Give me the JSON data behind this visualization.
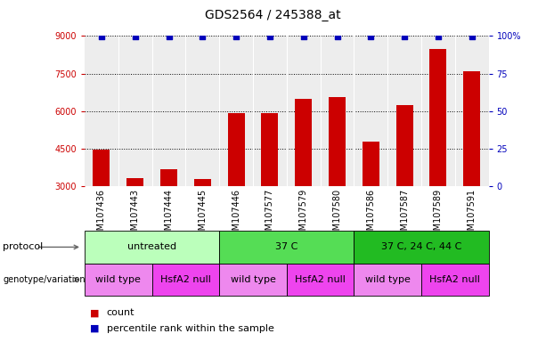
{
  "title": "GDS2564 / 245388_at",
  "samples": [
    "GSM107436",
    "GSM107443",
    "GSM107444",
    "GSM107445",
    "GSM107446",
    "GSM107577",
    "GSM107579",
    "GSM107580",
    "GSM107586",
    "GSM107587",
    "GSM107589",
    "GSM107591"
  ],
  "counts": [
    4480,
    3320,
    3680,
    3280,
    5920,
    5920,
    6480,
    6560,
    4800,
    6240,
    8480,
    7600
  ],
  "ylim_left": [
    3000,
    9000
  ],
  "ylim_right": [
    0,
    100
  ],
  "yticks_left": [
    3000,
    4500,
    6000,
    7500,
    9000
  ],
  "yticks_right": [
    0,
    25,
    50,
    75,
    100
  ],
  "bar_color": "#cc0000",
  "dot_color": "#0000bb",
  "grid_color": "#000000",
  "bg_color": "#ffffff",
  "left_label_color": "#cc0000",
  "right_label_color": "#0000bb",
  "protocol_groups": [
    {
      "label": "untreated",
      "start": 0,
      "end": 3,
      "color": "#bbffbb"
    },
    {
      "label": "37 C",
      "start": 4,
      "end": 7,
      "color": "#55dd55"
    },
    {
      "label": "37 C, 24 C, 44 C",
      "start": 8,
      "end": 11,
      "color": "#22bb22"
    }
  ],
  "genotype_groups": [
    {
      "label": "wild type",
      "start": 0,
      "end": 1,
      "color": "#ee88ee"
    },
    {
      "label": "HsfA2 null",
      "start": 2,
      "end": 3,
      "color": "#ee44ee"
    },
    {
      "label": "wild type",
      "start": 4,
      "end": 5,
      "color": "#ee88ee"
    },
    {
      "label": "HsfA2 null",
      "start": 6,
      "end": 7,
      "color": "#ee44ee"
    },
    {
      "label": "wild type",
      "start": 8,
      "end": 9,
      "color": "#ee88ee"
    },
    {
      "label": "HsfA2 null",
      "start": 10,
      "end": 11,
      "color": "#ee44ee"
    }
  ],
  "protocol_label": "protocol",
  "genotype_label": "genotype/variation",
  "legend_count_label": "count",
  "legend_percentile_label": "percentile rank within the sample",
  "bar_width": 0.5,
  "sample_bg_color": "#cccccc",
  "title_fontsize": 10,
  "tick_fontsize": 7,
  "annot_fontsize": 8
}
